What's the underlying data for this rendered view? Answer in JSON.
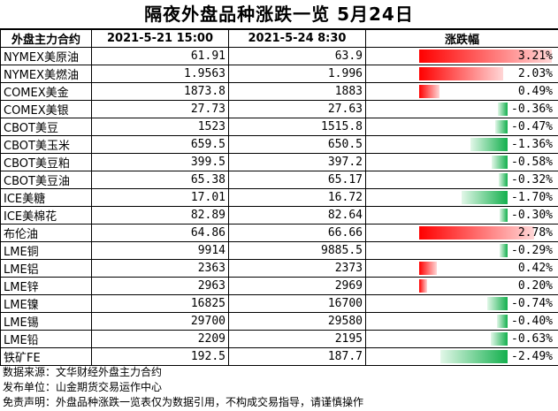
{
  "title": "隔夜外盘品种涨跌一览  5月24日",
  "header": {
    "col_name": "外盘主力合约",
    "col_prev": "2021-5-21  15:00",
    "col_curr": "2021-5-24  8:30",
    "col_change": "涨跌幅"
  },
  "rows": [
    {
      "name": "NYMEX美原油",
      "prev": "61.91",
      "curr": "63.9",
      "change": "3.21%",
      "pct": 3.21
    },
    {
      "name": "NYMEX美燃油",
      "prev": "1.9563",
      "curr": "1.996",
      "change": "2.03%",
      "pct": 2.03
    },
    {
      "name": "COMEX美金",
      "prev": "1873.8",
      "curr": "1883",
      "change": "0.49%",
      "pct": 0.49
    },
    {
      "name": "COMEX美银",
      "prev": "27.73",
      "curr": "27.63",
      "change": "-0.36%",
      "pct": -0.36
    },
    {
      "name": "CBOT美豆",
      "prev": "1523",
      "curr": "1515.8",
      "change": "-0.47%",
      "pct": -0.47
    },
    {
      "name": "CBOT美玉米",
      "prev": "659.5",
      "curr": "650.5",
      "change": "-1.36%",
      "pct": -1.36
    },
    {
      "name": "CBOT美豆粕",
      "prev": "399.5",
      "curr": "397.2",
      "change": "-0.58%",
      "pct": -0.58
    },
    {
      "name": "CBOT美豆油",
      "prev": "65.38",
      "curr": "65.17",
      "change": "-0.32%",
      "pct": -0.32
    },
    {
      "name": "ICE美糖",
      "prev": "17.01",
      "curr": "16.72",
      "change": "-1.70%",
      "pct": -1.7
    },
    {
      "name": "ICE美棉花",
      "prev": "82.89",
      "curr": "82.64",
      "change": "-0.30%",
      "pct": -0.3
    },
    {
      "name": "布伦油",
      "prev": "64.86",
      "curr": "66.66",
      "change": "2.78%",
      "pct": 2.78
    },
    {
      "name": "LME铜",
      "prev": "9914",
      "curr": "9885.5",
      "change": "-0.29%",
      "pct": -0.29
    },
    {
      "name": "LME铝",
      "prev": "2363",
      "curr": "2373",
      "change": "0.42%",
      "pct": 0.42
    },
    {
      "name": "LME锌",
      "prev": "2963",
      "curr": "2969",
      "change": "0.20%",
      "pct": 0.2
    },
    {
      "name": "LME镍",
      "prev": "16825",
      "curr": "16700",
      "change": "-0.74%",
      "pct": -0.74
    },
    {
      "name": "LME锡",
      "prev": "29700",
      "curr": "29580",
      "change": "-0.40%",
      "pct": -0.4
    },
    {
      "name": "LME铅",
      "prev": "2209",
      "curr": "2195",
      "change": "-0.63%",
      "pct": -0.63
    },
    {
      "name": "铁矿FE",
      "prev": "192.5",
      "curr": "187.7",
      "change": "-2.49%",
      "pct": -2.49
    }
  ],
  "footer": {
    "source": "数据来源：文华财经外盘主力合约",
    "publisher": "发布单位：山金期货交易运作中心",
    "disclaimer": "免责声明：外盘品种涨跌一览表仅为数据引用，不构成交易指导，请谨慎操作"
  },
  "colors": {
    "up": "#ff0000",
    "down": "#14b04e"
  }
}
